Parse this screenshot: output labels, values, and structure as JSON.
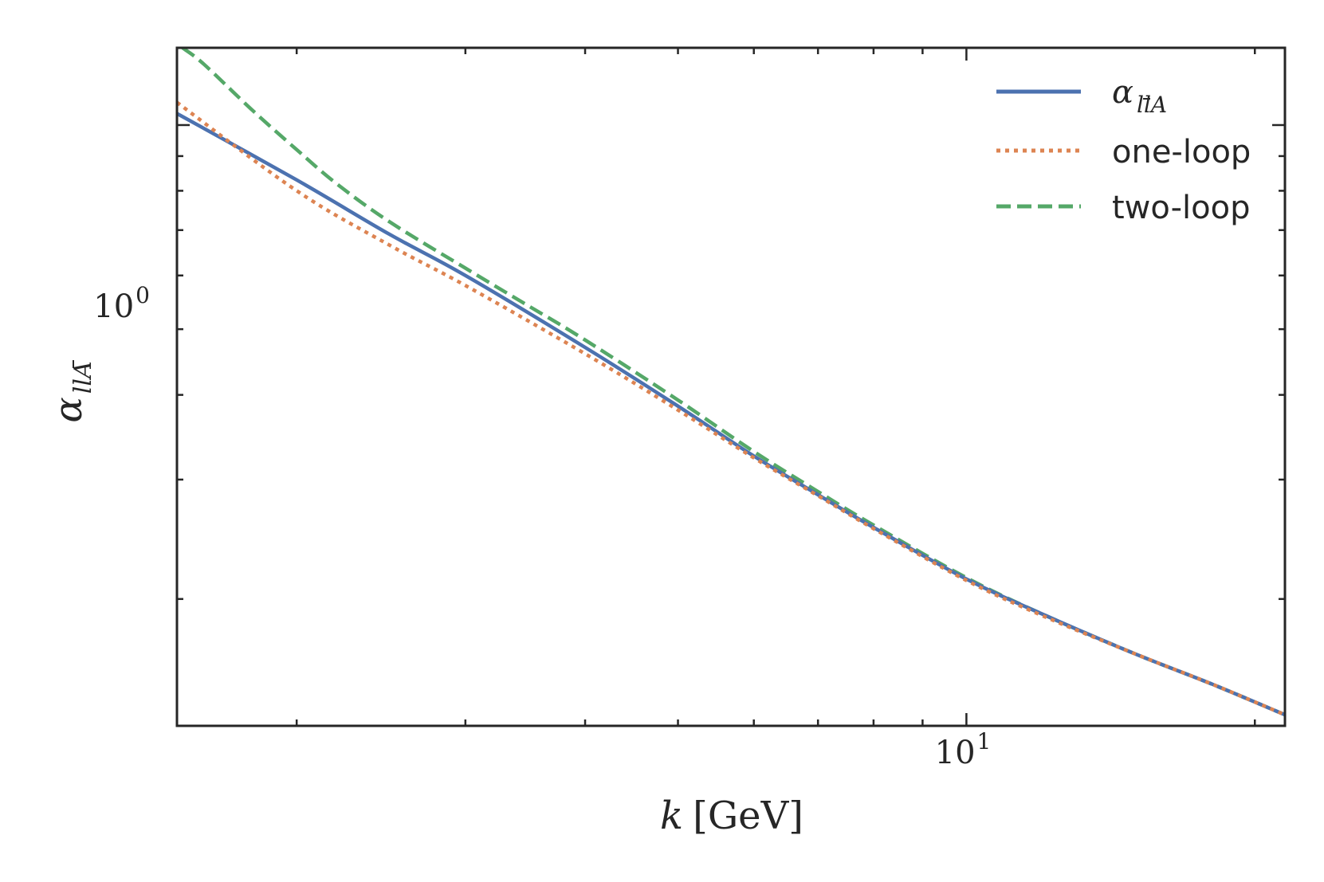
{
  "chart_data": {
    "type": "line",
    "xscale": "log",
    "yscale": "log",
    "xlim": [
      1.5,
      21.5
    ],
    "ylim": [
      0.13,
      1.3
    ],
    "xlabel": {
      "var": "k",
      "unit": "[GeV]"
    },
    "ylabel": {
      "main": "α",
      "sub": "llA",
      "sub_note": "l-bar over second l"
    },
    "x_major_ticks": [
      {
        "value": 10,
        "base": "10",
        "exp": "1"
      }
    ],
    "y_major_ticks": [
      {
        "value": 1,
        "base": "10",
        "exp": "0"
      }
    ],
    "legend_position": "upper right",
    "colors": {
      "alpha": "#4c72b0",
      "one_loop": "#dd8452",
      "two_loop": "#55a868",
      "frame": "#262626"
    },
    "series": [
      {
        "key": "alpha",
        "name": "α_llA",
        "legend_main": "α",
        "legend_sub": "llA",
        "style": "solid",
        "x": [
          1.5,
          2,
          2.5,
          3,
          4,
          5,
          6,
          7,
          8,
          10,
          12,
          15,
          18,
          21.5
        ],
        "y": [
          1.04,
          0.83,
          0.69,
          0.6,
          0.47,
          0.385,
          0.325,
          0.285,
          0.255,
          0.214,
          0.19,
          0.166,
          0.15,
          0.135
        ]
      },
      {
        "key": "one_loop",
        "name": "one-loop",
        "style": "dotted",
        "x": [
          1.5,
          2,
          2.5,
          3,
          4,
          5,
          6,
          7,
          8,
          10,
          12,
          15,
          18,
          21.5
        ],
        "y": [
          1.08,
          0.8,
          0.665,
          0.58,
          0.46,
          0.38,
          0.323,
          0.284,
          0.254,
          0.213,
          0.189,
          0.166,
          0.15,
          0.135
        ]
      },
      {
        "key": "two_loop",
        "name": "two-loop",
        "style": "dashed",
        "x": [
          1.52,
          1.6,
          1.8,
          2.0,
          2.2,
          2.5,
          3,
          3.5,
          4,
          5,
          6,
          7,
          8,
          10,
          12,
          15,
          18,
          21.5
        ],
        "y": [
          1.3,
          1.23,
          1.05,
          0.92,
          0.82,
          0.72,
          0.615,
          0.54,
          0.482,
          0.393,
          0.33,
          0.288,
          0.257,
          0.215,
          0.19,
          0.166,
          0.15,
          0.135
        ]
      }
    ]
  }
}
